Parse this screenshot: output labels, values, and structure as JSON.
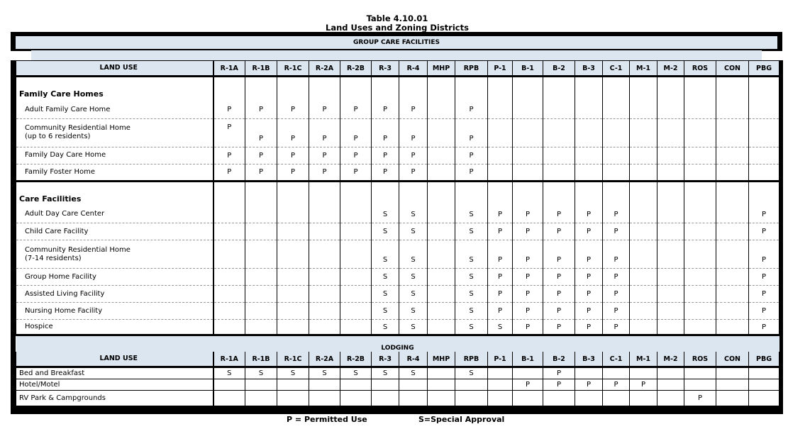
{
  "title": "Table 4.10.01",
  "subtitle": "Land Uses and Zoning Districts",
  "section": "GROUP CARE FACILITIES",
  "header_label": "LAND USE",
  "districts": [
    "R-1A",
    "R-1B",
    "R-1C",
    "R-2A",
    "R-2B",
    "R-3",
    "R-4",
    "MHP",
    "RPB",
    "P-1",
    "B-1",
    "B-2",
    "B-3",
    "C-1",
    "M-1",
    "M-2",
    "ROS",
    "CON",
    "PBG"
  ],
  "groups": [
    {
      "name": "Family Care Homes",
      "rows": [
        {
          "use": "Adult Family Care Home",
          "cells": [
            "P",
            "P",
            "P",
            "P",
            "P",
            "P",
            "P",
            "",
            "P",
            "",
            "",
            "",
            "",
            "",
            "",
            "",
            "",
            "",
            ""
          ]
        },
        {
          "use": "Community Residential Home (up to 6 residents)",
          "cells": [
            "P",
            "P",
            "P",
            "P",
            "P",
            "P",
            "P",
            "",
            "P",
            "",
            "",
            "",
            "",
            "",
            "",
            "",
            "",
            "",
            ""
          ]
        },
        {
          "use": "Family Day Care Home",
          "cells": [
            "P",
            "P",
            "P",
            "P",
            "P",
            "P",
            "P",
            "",
            "P",
            "",
            "",
            "",
            "",
            "",
            "",
            "",
            "",
            "",
            ""
          ]
        },
        {
          "use": "Family Foster Home",
          "cells": [
            "P",
            "P",
            "P",
            "P",
            "P",
            "P",
            "P",
            "",
            "P",
            "",
            "",
            "",
            "",
            "",
            "",
            "",
            "",
            "",
            ""
          ]
        }
      ]
    },
    {
      "name": "Care Facilities",
      "rows": [
        {
          "use": "Adult Day Care Center",
          "cells": [
            "",
            "",
            "",
            "",
            "",
            "S",
            "S",
            "",
            "S",
            "P",
            "P",
            "P",
            "P",
            "P",
            "",
            "",
            "",
            "",
            "P"
          ]
        },
        {
          "use": "Child Care Facility",
          "cells": [
            "",
            "",
            "",
            "",
            "",
            "S",
            "S",
            "",
            "S",
            "P",
            "P",
            "P",
            "P",
            "P",
            "",
            "",
            "",
            "",
            "P"
          ]
        },
        {
          "use": "Community Residential Home (7-14 residents)",
          "cells": [
            "",
            "",
            "",
            "",
            "",
            "S",
            "S",
            "",
            "S",
            "P",
            "P",
            "P",
            "P",
            "P",
            "",
            "",
            "",
            "",
            "P"
          ]
        },
        {
          "use": "Group Home Facility",
          "cells": [
            "",
            "",
            "",
            "",
            "",
            "S",
            "S",
            "",
            "S",
            "P",
            "P",
            "P",
            "P",
            "P",
            "",
            "",
            "",
            "",
            "P"
          ]
        },
        {
          "use": "Assisted Living Facility",
          "cells": [
            "",
            "",
            "",
            "",
            "",
            "S",
            "S",
            "",
            "S",
            "P",
            "P",
            "P",
            "P",
            "P",
            "",
            "",
            "",
            "",
            "P"
          ]
        },
        {
          "use": "Nursing Home Facility",
          "cells": [
            "",
            "",
            "",
            "",
            "",
            "S",
            "S",
            "",
            "S",
            "P",
            "P",
            "P",
            "P",
            "P",
            "",
            "",
            "",
            "",
            "P"
          ]
        },
        {
          "use": "Hospice",
          "cells": [
            "",
            "",
            "",
            "",
            "",
            "S",
            "S",
            "",
            "S",
            "S",
            "P",
            "P",
            "P",
            "P",
            "",
            "",
            "",
            "",
            "P"
          ]
        }
      ]
    }
  ],
  "lodging": {
    "name": "LODGING",
    "rows": [
      {
        "use": "Bed and Breakfast",
        "cells": [
          "S",
          "S",
          "S",
          "S",
          "S",
          "S",
          "S",
          "",
          "S",
          "",
          "",
          "P",
          "",
          "",
          "",
          "",
          "",
          "",
          ""
        ]
      },
      {
        "use": "Hotel/Motel",
        "cells": [
          "",
          "",
          "",
          "",
          "",
          "",
          "",
          "",
          "",
          "",
          "P",
          "P",
          "P",
          "P",
          "P",
          "",
          "",
          "",
          ""
        ]
      },
      {
        "use": "RV Park & Campgrounds",
        "cells": [
          "",
          "",
          "",
          "",
          "",
          "",
          "",
          "",
          "",
          "",
          "",
          "",
          "",
          "",
          "",
          "",
          "P",
          "",
          ""
        ]
      }
    ]
  },
  "legend": {
    "p": "P = Permitted Use",
    "s": "S=Special Approval"
  },
  "colors": {
    "header_bg": "#dce6f1",
    "border": "#000000"
  }
}
